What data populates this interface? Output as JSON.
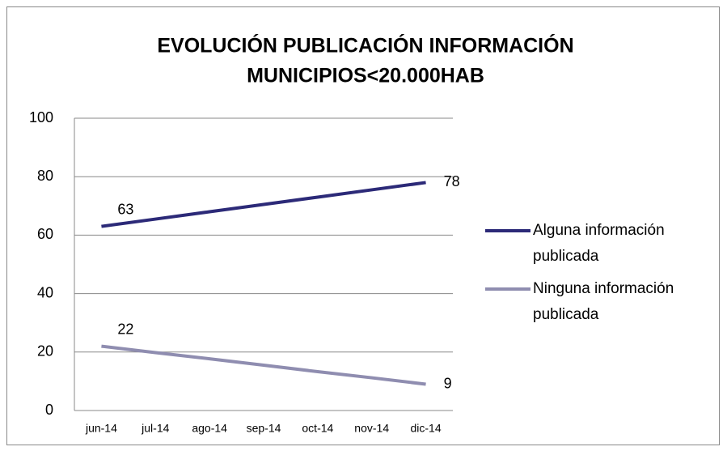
{
  "chart_data": {
    "type": "line",
    "title": [
      "EVOLUCIÓN PUBLICACIÓN INFORMACIÓN",
      "MUNICIPIOS<20.000HAB"
    ],
    "categories": [
      "jun-14",
      "jul-14",
      "ago-14",
      "sep-14",
      "oct-14",
      "nov-14",
      "dic-14"
    ],
    "series": [
      {
        "name": "Alguna información publicada",
        "color": "#2c2a78",
        "values": [
          63,
          65.5,
          68,
          70.5,
          73,
          75.5,
          78
        ]
      },
      {
        "name": "Ninguna información publicada",
        "color": "#8f8db0",
        "values": [
          22,
          19.8,
          17.7,
          15.5,
          13.3,
          11.2,
          9
        ]
      }
    ],
    "data_labels": "ends",
    "ylim": [
      0,
      100
    ],
    "yticks": [
      0,
      20,
      40,
      60,
      80,
      100
    ],
    "grid": true,
    "legend": "right"
  }
}
